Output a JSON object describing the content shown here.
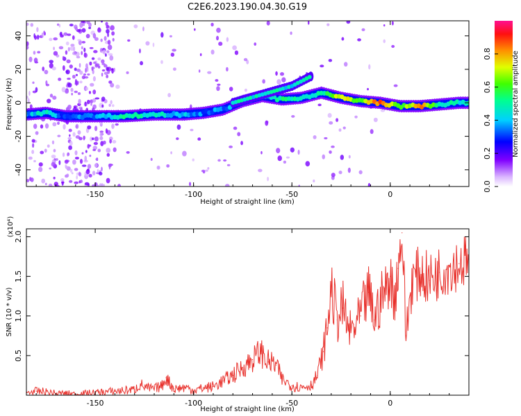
{
  "chart_data": [
    {
      "type": "heatmap",
      "title": "C2E6.2023.190.04.30.G19",
      "xlabel": "Height of straight line (km)",
      "ylabel": "Frequency (Hz)",
      "xlim": [
        -185,
        40
      ],
      "ylim": [
        -50,
        49
      ],
      "xticks": [
        -150,
        -100,
        -50,
        0
      ],
      "yticks": [
        -40,
        -20,
        0,
        20,
        40
      ],
      "grid": false,
      "colorbar": {
        "label": "Normalized spectral amplitude",
        "range": [
          0.0,
          1.0
        ],
        "ticks": [
          0.0,
          0.2,
          0.4,
          0.6,
          0.8
        ],
        "colormap": "rainbow"
      },
      "main_trace": [
        {
          "x": -185,
          "y": -7,
          "amp": 0.35
        },
        {
          "x": -175,
          "y": -6,
          "amp": 0.5
        },
        {
          "x": -165,
          "y": -8,
          "amp": 0.3
        },
        {
          "x": -150,
          "y": -8,
          "amp": 0.35
        },
        {
          "x": -135,
          "y": -8,
          "amp": 0.5
        },
        {
          "x": -120,
          "y": -7,
          "amp": 0.45
        },
        {
          "x": -105,
          "y": -7,
          "amp": 0.4
        },
        {
          "x": -95,
          "y": -6,
          "amp": 0.35
        },
        {
          "x": -85,
          "y": -4,
          "amp": 0.35
        },
        {
          "x": -75,
          "y": 1,
          "amp": 0.4
        },
        {
          "x": -65,
          "y": 4,
          "amp": 0.45
        },
        {
          "x": -55,
          "y": 2,
          "amp": 0.5
        },
        {
          "x": -45,
          "y": 3,
          "amp": 0.45
        },
        {
          "x": -35,
          "y": 6,
          "amp": 0.5
        },
        {
          "x": -25,
          "y": 3,
          "amp": 0.75
        },
        {
          "x": -15,
          "y": 1,
          "amp": 0.6
        },
        {
          "x": -5,
          "y": 0,
          "amp": 0.9
        },
        {
          "x": 5,
          "y": -2,
          "amp": 0.55
        },
        {
          "x": 15,
          "y": -2,
          "amp": 0.85
        },
        {
          "x": 25,
          "y": -1,
          "amp": 0.5
        },
        {
          "x": 35,
          "y": 0,
          "amp": 0.45
        }
      ],
      "upper_branch": [
        {
          "x": -80,
          "y": 0
        },
        {
          "x": -65,
          "y": 5
        },
        {
          "x": -50,
          "y": 10
        },
        {
          "x": -40,
          "y": 16
        }
      ],
      "faint_band_x": [
        -165,
        -140
      ]
    },
    {
      "type": "line",
      "xlabel": "Height of straight line (km)",
      "ylabel": "SNR (10 * v/v)",
      "y_multiplier": "(x10⁴)",
      "xlim": [
        -185,
        40
      ],
      "ylim": [
        0,
        2.1
      ],
      "xticks": [
        -150,
        -100,
        -50,
        0
      ],
      "yticks": [
        0.5,
        1.0,
        1.5,
        2.0
      ],
      "grid": false,
      "series": [
        {
          "color": "#e8302b",
          "x": [
            -185,
            -180,
            -175,
            -170,
            -165,
            -160,
            -150,
            -140,
            -130,
            -127,
            -124,
            -120,
            -116,
            -114,
            -110,
            -104,
            -100,
            -95,
            -90,
            -85,
            -80,
            -75,
            -70,
            -66,
            -62,
            -58,
            -55,
            -50,
            -45,
            -40,
            -37,
            -34,
            -32,
            -30,
            -27,
            -24,
            -21,
            -18,
            -15,
            -13,
            -11,
            -8,
            -5,
            -2,
            0,
            2,
            4,
            6,
            8,
            11,
            15,
            20,
            25,
            30,
            35,
            40
          ],
          "values": [
            0.03,
            0.05,
            0.04,
            0.02,
            0.02,
            0.01,
            0.03,
            0.05,
            0.07,
            0.14,
            0.09,
            0.08,
            0.12,
            0.22,
            0.08,
            0.1,
            0.06,
            0.09,
            0.11,
            0.18,
            0.25,
            0.35,
            0.45,
            0.55,
            0.42,
            0.38,
            0.2,
            0.12,
            0.1,
            0.13,
            0.25,
            0.55,
            0.85,
            1.35,
            0.95,
            1.1,
            0.8,
            0.85,
            1.0,
            1.15,
            1.3,
            0.95,
            1.2,
            1.35,
            1.5,
            1.2,
            1.6,
            2.05,
            0.75,
            1.45,
            1.55,
            1.45,
            1.55,
            1.62,
            1.66,
            1.7
          ]
        }
      ]
    }
  ]
}
